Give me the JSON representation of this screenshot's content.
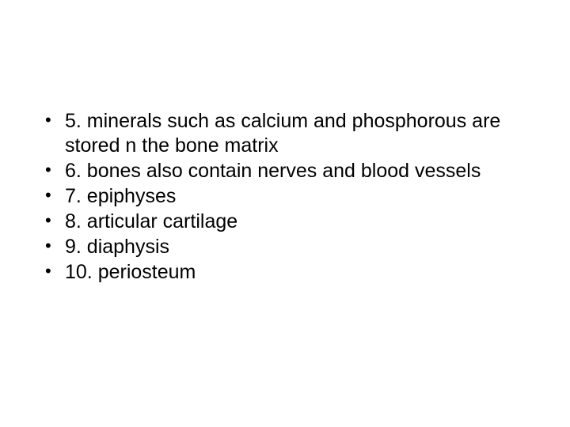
{
  "slide": {
    "background_color": "#ffffff",
    "text_color": "#000000",
    "font_family": "Arial",
    "font_size_pt": 25,
    "line_height": 1.24,
    "bullet_char": "•",
    "items": [
      "5. minerals such as calcium and phosphorous are stored n the bone matrix",
      "6. bones also contain nerves and blood vessels",
      "7. epiphyses",
      "8. articular cartilage",
      "9. diaphysis",
      "10. periosteum"
    ]
  }
}
